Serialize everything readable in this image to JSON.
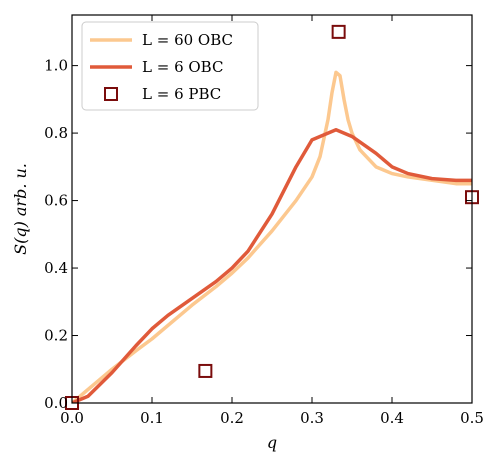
{
  "chart_data": {
    "type": "line",
    "title": "",
    "xlabel": "q",
    "ylabel": "S(q) arb. u.",
    "xlim": [
      0.0,
      0.5
    ],
    "ylim": [
      0.0,
      1.15
    ],
    "xticks": [
      0.0,
      0.1,
      0.2,
      0.3,
      0.4,
      0.5
    ],
    "xtick_labels": [
      "0.0",
      "0.1",
      "0.2",
      "0.3",
      "0.4",
      "0.5"
    ],
    "yticks": [
      0.0,
      0.2,
      0.4,
      0.6,
      0.8,
      1.0
    ],
    "ytick_labels": [
      "0.0",
      "0.2",
      "0.4",
      "0.6",
      "0.8",
      "1.0"
    ],
    "grid": false,
    "legend_position": "top-left",
    "series": [
      {
        "name": "L = 60 OBC",
        "style": "line",
        "color": "#fcc88f",
        "x": [
          0.0,
          0.02,
          0.05,
          0.08,
          0.1,
          0.12,
          0.15,
          0.18,
          0.2,
          0.22,
          0.25,
          0.28,
          0.3,
          0.31,
          0.32,
          0.325,
          0.33,
          0.335,
          0.34,
          0.345,
          0.35,
          0.36,
          0.38,
          0.4,
          0.42,
          0.45,
          0.48,
          0.5
        ],
        "y": [
          0.0,
          0.04,
          0.1,
          0.155,
          0.19,
          0.23,
          0.29,
          0.345,
          0.385,
          0.43,
          0.51,
          0.6,
          0.67,
          0.73,
          0.84,
          0.92,
          0.98,
          0.97,
          0.9,
          0.84,
          0.8,
          0.75,
          0.7,
          0.68,
          0.67,
          0.66,
          0.65,
          0.65
        ]
      },
      {
        "name": "L = 6 OBC",
        "style": "line",
        "color": "#e05a3a",
        "x": [
          0.0,
          0.02,
          0.05,
          0.08,
          0.1,
          0.12,
          0.15,
          0.18,
          0.2,
          0.22,
          0.25,
          0.28,
          0.3,
          0.33,
          0.35,
          0.38,
          0.4,
          0.42,
          0.45,
          0.48,
          0.5
        ],
        "y": [
          0.0,
          0.02,
          0.09,
          0.17,
          0.22,
          0.26,
          0.31,
          0.36,
          0.4,
          0.45,
          0.56,
          0.7,
          0.78,
          0.81,
          0.79,
          0.74,
          0.7,
          0.68,
          0.665,
          0.66,
          0.66
        ]
      },
      {
        "name": "L = 6 PBC",
        "style": "marker",
        "marker": "square",
        "color": "#7a0c0c",
        "x": [
          0.0,
          0.1667,
          0.3333,
          0.5
        ],
        "y": [
          0.0,
          0.095,
          1.1,
          0.61
        ]
      }
    ]
  }
}
